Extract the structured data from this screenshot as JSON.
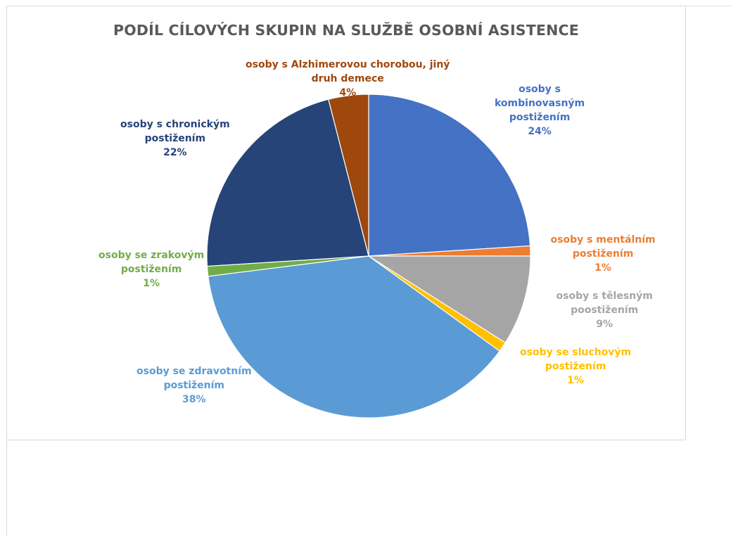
{
  "chart_data": {
    "type": "pie",
    "title": "PODÍL CÍLOVÝCH SKUPIN NA SLUŽBĚ OSOBNÍ ASISTENCE",
    "slices": [
      {
        "lines": [
          "osoby s",
          "kombinovasným",
          "postižením"
        ],
        "value": 24,
        "pct_label": "24%",
        "color": "#4472c4"
      },
      {
        "lines": [
          "osoby s mentálním",
          "postižením"
        ],
        "value": 1,
        "pct_label": "1%",
        "color": "#ed7d31"
      },
      {
        "lines": [
          "osoby s tělesným",
          "poostižením"
        ],
        "value": 9,
        "pct_label": "9%",
        "color": "#a5a5a5"
      },
      {
        "lines": [
          "osoby se sluchovým",
          "postižením"
        ],
        "value": 1,
        "pct_label": "1%",
        "color": "#ffc000"
      },
      {
        "lines": [
          "osoby se zdravotním",
          "postižením"
        ],
        "value": 38,
        "pct_label": "38%",
        "color": "#5b9bd5"
      },
      {
        "lines": [
          "osoby se zrakovým",
          "postižením"
        ],
        "value": 1,
        "pct_label": "1%",
        "color": "#70ad47"
      },
      {
        "lines": [
          "osoby s chronickým",
          "postižením"
        ],
        "value": 22,
        "pct_label": "22%",
        "color": "#264478"
      },
      {
        "lines": [
          "osoby s Alzhimerovou chorobou, jiný",
          "druh demece"
        ],
        "value": 4,
        "pct_label": "4%",
        "color": "#9e480e"
      }
    ],
    "legend": "none"
  }
}
